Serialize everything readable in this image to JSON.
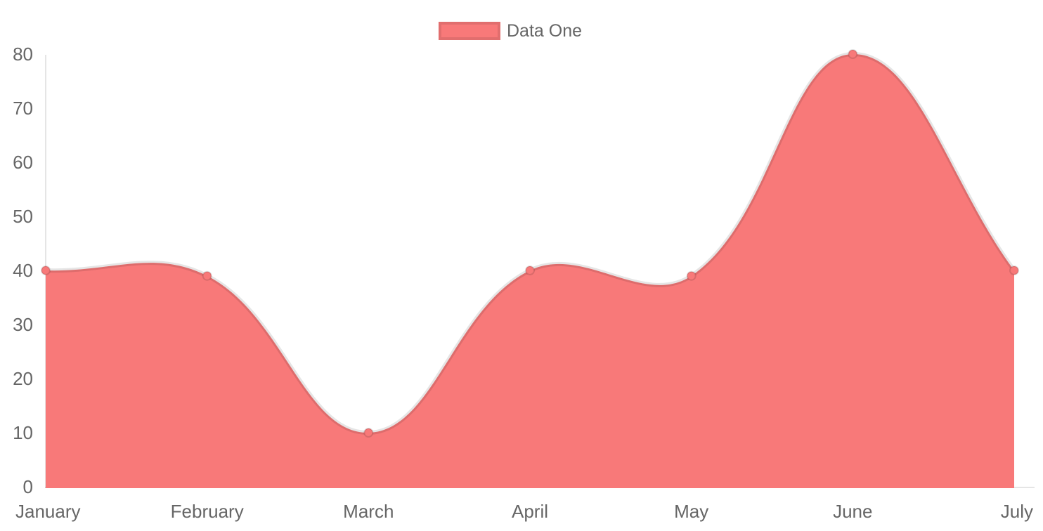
{
  "legend": {
    "position": "top",
    "items": [
      {
        "label": "Data One",
        "color": "#f87979"
      }
    ]
  },
  "chart_data": {
    "type": "area",
    "title": "",
    "xlabel": "",
    "ylabel": "",
    "categories": [
      "January",
      "February",
      "March",
      "April",
      "May",
      "June",
      "July"
    ],
    "series": [
      {
        "name": "Data One",
        "values": [
          40,
          39,
          10,
          40,
          39,
          80,
          40
        ]
      }
    ],
    "ylim": [
      0,
      80
    ],
    "y_ticks": [
      0,
      10,
      20,
      30,
      40,
      50,
      60,
      70,
      80
    ],
    "grid": false,
    "legend_position": "top",
    "smoothing": "bezier-tension-0.4",
    "colors": {
      "fill": "#f87979",
      "line": "rgba(0,0,0,0.1)",
      "point_fill": "#f87979",
      "point_border": "rgba(0,0,0,0.12)",
      "axis_line": "rgba(0,0,0,0.1)",
      "tick_text": "#666666"
    }
  }
}
